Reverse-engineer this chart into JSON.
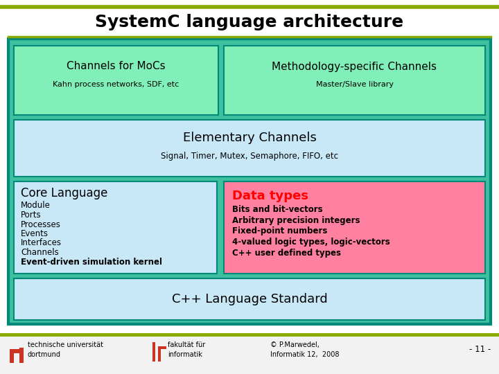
{
  "title": "SystemC language architecture",
  "title_fontsize": 18,
  "title_fontweight": "bold",
  "bg_color": "#ffffff",
  "outer_border_color": "#008878",
  "outer_fill_color": "#3dbfa0",
  "inner_fill_color": "#c8e8f8",
  "green_box_color": "#80f0b8",
  "pink_box_color": "#ff80a0",
  "olive_line_color": "#88aa00",
  "channels_mocs_title": "Channels for MoCs",
  "channels_mocs_subtitle": "Kahn process networks, SDF, etc",
  "methodology_title": "Methodology-specific Channels",
  "methodology_subtitle": "Master/Slave library",
  "elementary_title": "Elementary Channels",
  "elementary_subtitle": "Signal, Timer, Mutex, Semaphore, FIFO, etc",
  "core_title": "Core Language",
  "core_items": [
    "Module",
    "Ports",
    "Processes",
    "Events",
    "Interfaces",
    "Channels"
  ],
  "core_bold": "Event-driven simulation kernel",
  "data_types_title": "Data types",
  "data_types_items": [
    "Bits and bit-vectors",
    "Arbitrary precision integers",
    "Fixed-point numbers",
    "4-valued logic types, logic-vectors",
    "C++ user defined types"
  ],
  "cpp_standard": "C++ Language Standard",
  "footer_left1": "technische universität",
  "footer_left2": "dortmund",
  "footer_mid1": "fakultät für",
  "footer_mid2": "informatik",
  "footer_right1": "© P.Marwedel,",
  "footer_right2": "Informatik 12,  2008",
  "footer_page": "- 11 -"
}
